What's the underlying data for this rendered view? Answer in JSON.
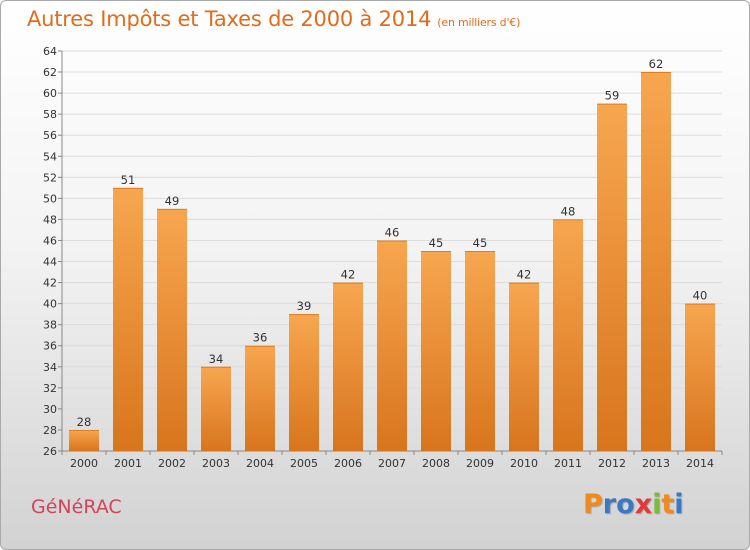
{
  "title": {
    "main": "Autres Impôts et Taxes de 2000 à 2014",
    "unit": "(en milliers d'€)"
  },
  "commune": "GéNéRAC",
  "logo": {
    "text": "Proxiti",
    "letter_colors": [
      "#f08a1c",
      "#3a78c4",
      "#3a78c4",
      "#e23a3a",
      "#7dbb3a",
      "#f08a1c",
      "#3a78c4"
    ]
  },
  "colors": {
    "title": "#e26b1a",
    "commune": "#d2445a",
    "bar_light": "#f7a650",
    "bar_dark": "#d8751d"
  },
  "chart_data": {
    "type": "bar",
    "title": "Autres Impôts et Taxes de 2000 à 2014",
    "subtitle": "(en milliers d'€)",
    "xlabel": "",
    "ylabel": "",
    "categories": [
      "2000",
      "2001",
      "2002",
      "2003",
      "2004",
      "2005",
      "2006",
      "2007",
      "2008",
      "2009",
      "2010",
      "2011",
      "2012",
      "2013",
      "2014"
    ],
    "values": [
      28,
      51,
      49,
      34,
      36,
      39,
      42,
      46,
      45,
      45,
      42,
      48,
      59,
      62,
      40
    ],
    "data_labels": [
      "28",
      "51",
      "49",
      "34",
      "36",
      "39",
      "42",
      "46",
      "45",
      "45",
      "42",
      "48",
      "59",
      "62",
      "40"
    ],
    "ylim": [
      26,
      64
    ],
    "yticks": [
      "26",
      "28",
      "30",
      "32",
      "34",
      "36",
      "38",
      "40",
      "42",
      "44",
      "46",
      "48",
      "50",
      "52",
      "54",
      "56",
      "58",
      "60",
      "62",
      "64"
    ],
    "grid": true,
    "legend": "none"
  }
}
